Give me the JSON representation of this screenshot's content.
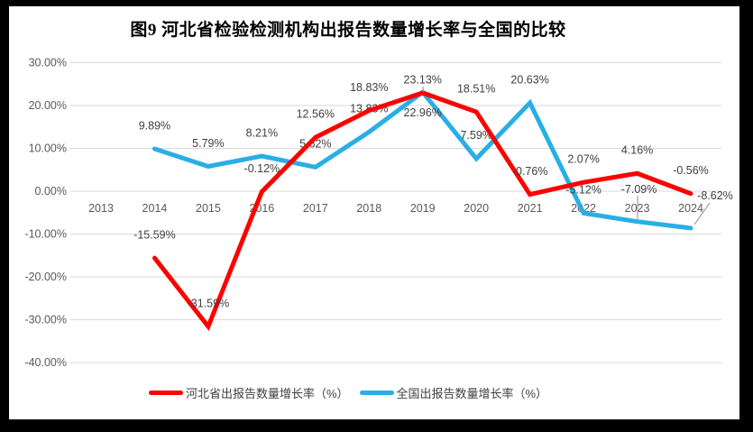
{
  "window": {
    "frame_color": "#000000",
    "chart_background": "#ffffff"
  },
  "chart_data": {
    "type": "line",
    "title": "图9 河北省检验检测机构出报告数量增长率与全国的比较",
    "categories": [
      "2013",
      "2014",
      "2015",
      "2016",
      "2017",
      "2018",
      "2019",
      "2020",
      "2021",
      "2022",
      "2023",
      "2024"
    ],
    "series": [
      {
        "name": "河北省出报告数量增长率（%）",
        "color": "#FE0000",
        "values": [
          null,
          -15.59,
          -31.59,
          -0.12,
          12.56,
          18.83,
          22.96,
          18.51,
          -0.76,
          2.07,
          4.16,
          -0.56
        ],
        "labels": [
          null,
          "-15.59%",
          "-31.59%",
          "-0.12%",
          "12.56%",
          "18.83%",
          "22.96%",
          "18.51%",
          "-0.76%",
          "2.07%",
          "4.16%",
          "-0.56%"
        ]
      },
      {
        "name": "全国出报告数量增长率（%）",
        "color": "#29AEE5",
        "values": [
          null,
          9.89,
          5.79,
          8.21,
          5.62,
          13.83,
          23.13,
          7.59,
          20.63,
          -5.12,
          -7.09,
          -8.62
        ],
        "labels": [
          null,
          "9.89%",
          "5.79%",
          "8.21%",
          "5.62%",
          "13.83%",
          "23.13%",
          "7.59%",
          "20.63%",
          "-5.12%",
          "-7.09%",
          "-8.62%"
        ]
      }
    ],
    "y_axis": {
      "min": -40,
      "max": 30,
      "step": 10,
      "tick_labels": [
        "30.00%",
        "20.00%",
        "10.00%",
        "0.00%",
        "-10.00%",
        "-20.00%",
        "-30.00%",
        "-40.00%"
      ]
    },
    "grid": true,
    "legend_position": "bottom",
    "data_labels_shown": true,
    "colors": {
      "gridline": "#D9D9D9",
      "axis_text": "#595959",
      "data_label_text": "#404040",
      "leader_line": "#A6A6A6",
      "title_text": "#000000"
    }
  }
}
